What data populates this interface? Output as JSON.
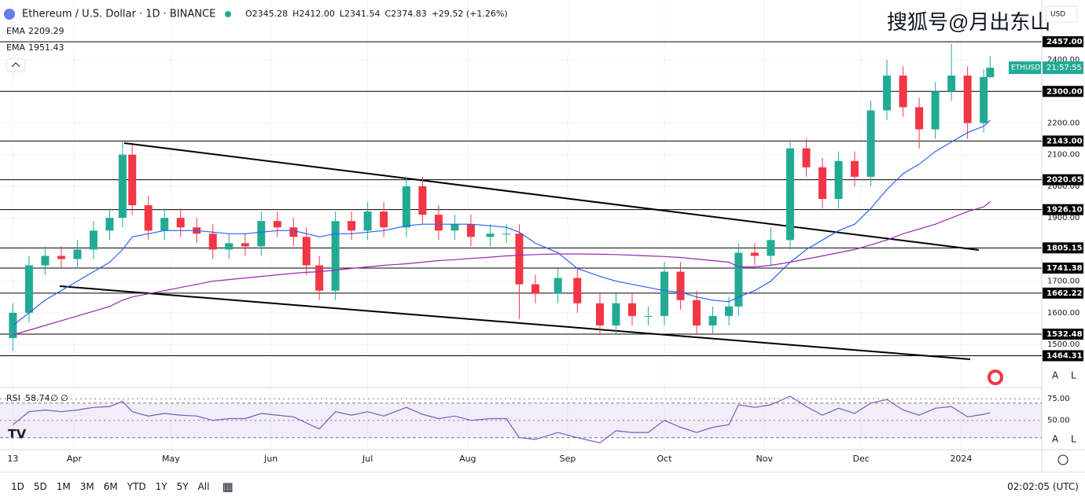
{
  "header": {
    "symbol": "Ethereum / U.S. Dollar · 1D · BINANCE",
    "ohlc": [
      "O2345.28",
      "H2412.00",
      "L2341.54",
      "C2374.83",
      "+29.52 (+1.26%)"
    ],
    "watermark": "搜狐号@月出东山",
    "currency": "USD",
    "time": "02:02:05 (UTC)",
    "ranges": [
      "1D",
      "5D",
      "1M",
      "3M",
      "6M",
      "YTD",
      "1Y",
      "5Y",
      "All"
    ],
    "scale_buttons": [
      "A",
      "L"
    ]
  },
  "price_tag": {
    "symbol": "ETHUSD",
    "countdown": "21:57:55"
  },
  "chart_data": {
    "type": "candlestick",
    "up_color": "#22ab94",
    "down_color": "#f23645",
    "xlim": [
      "2023-03-09",
      "2024-01-26"
    ],
    "ylim": [
      1366,
      2589
    ],
    "xticks": [
      {
        "value": "2023-03-13",
        "label": "13"
      },
      {
        "value": "2023-04-01",
        "label": "Apr"
      },
      {
        "value": "2023-05-01",
        "label": "May"
      },
      {
        "value": "2023-06-01",
        "label": "Jun"
      },
      {
        "value": "2023-07-01",
        "label": "Jul"
      },
      {
        "value": "2023-08-01",
        "label": "Aug"
      },
      {
        "value": "2023-09-01",
        "label": "Sep"
      },
      {
        "value": "2023-10-01",
        "label": "Oct"
      },
      {
        "value": "2023-11-01",
        "label": "Nov"
      },
      {
        "value": "2023-12-01",
        "label": "Dec"
      },
      {
        "value": "2024-01-01",
        "label": "2024"
      }
    ],
    "yticks": [
      {
        "value": 1500,
        "label": "1500.00"
      },
      {
        "value": 1600,
        "label": "1600.00"
      },
      {
        "value": 1700,
        "label": "1700.00"
      },
      {
        "value": 1800,
        "label": "1800.00"
      },
      {
        "value": 1900,
        "label": "1900.00"
      },
      {
        "value": 2000,
        "label": "2000.00"
      },
      {
        "value": 2100,
        "label": "2100.00"
      },
      {
        "value": 2200,
        "label": "2200.00"
      },
      {
        "value": 2300,
        "label": "2300.00"
      },
      {
        "value": 2400,
        "label": "2400.00"
      }
    ],
    "levels": [
      {
        "value": 2457,
        "label": "2457.00"
      },
      {
        "value": 2300,
        "label": "2300.00"
      },
      {
        "value": 2143,
        "label": "2143.00"
      },
      2020.65,
      {
        "value": 1926.1,
        "label": "1926.10"
      },
      1805.15,
      1741.38,
      1662.22,
      1532.48,
      1464.31
    ],
    "x": [
      "2023-03-13",
      "2023-03-18",
      "2023-03-23",
      "2023-03-28",
      "2023-04-02",
      "2023-04-07",
      "2023-04-12",
      "2023-04-16",
      "2023-04-19",
      "2023-04-24",
      "2023-04-29",
      "2023-05-04",
      "2023-05-09",
      "2023-05-14",
      "2023-05-19",
      "2023-05-24",
      "2023-05-29",
      "2023-06-03",
      "2023-06-08",
      "2023-06-12",
      "2023-06-16",
      "2023-06-21",
      "2023-06-26",
      "2023-07-01",
      "2023-07-06",
      "2023-07-13",
      "2023-07-18",
      "2023-07-23",
      "2023-07-28",
      "2023-08-02",
      "2023-08-08",
      "2023-08-13",
      "2023-08-17",
      "2023-08-22",
      "2023-08-29",
      "2023-09-04",
      "2023-09-11",
      "2023-09-16",
      "2023-09-21",
      "2023-09-26",
      "2023-10-01",
      "2023-10-06",
      "2023-10-11",
      "2023-10-16",
      "2023-10-21",
      "2023-10-24",
      "2023-10-29",
      "2023-11-03",
      "2023-11-09",
      "2023-11-14",
      "2023-11-19",
      "2023-11-24",
      "2023-11-29",
      "2023-12-04",
      "2023-12-09",
      "2023-12-14",
      "2023-12-19",
      "2023-12-24",
      "2023-12-29",
      "2024-01-03",
      "2024-01-08",
      "2024-01-10"
    ],
    "open": [
      1520,
      1600,
      1750,
      1780,
      1770,
      1800,
      1860,
      1900,
      2100,
      1940,
      1860,
      1900,
      1870,
      1850,
      1800,
      1820,
      1810,
      1890,
      1870,
      1840,
      1750,
      1670,
      1890,
      1860,
      1920,
      1870,
      2000,
      1910,
      1860,
      1880,
      1840,
      1850,
      1850,
      1690,
      1660,
      1710,
      1630,
      1560,
      1630,
      1590,
      1590,
      1730,
      1640,
      1560,
      1590,
      1620,
      1790,
      1780,
      1830,
      2120,
      2060,
      1960,
      2080,
      2030,
      2240,
      2350,
      2250,
      2180,
      2300,
      2350,
      2200,
      2345.28
    ],
    "high": [
      1630,
      1780,
      1810,
      1810,
      1830,
      1890,
      1930,
      2140,
      2130,
      1970,
      1930,
      1930,
      1900,
      1880,
      1850,
      1850,
      1920,
      1920,
      1900,
      1870,
      1780,
      1920,
      1920,
      1950,
      1950,
      2030,
      2030,
      1940,
      1910,
      1910,
      1880,
      1880,
      1880,
      1720,
      1740,
      1740,
      1660,
      1660,
      1660,
      1620,
      1760,
      1760,
      1670,
      1620,
      1650,
      1820,
      1820,
      1870,
      2140,
      2150,
      2090,
      2110,
      2110,
      2270,
      2400,
      2380,
      2280,
      2330,
      2450,
      2380,
      2370,
      2412
    ],
    "low": [
      1480,
      1570,
      1720,
      1740,
      1740,
      1770,
      1830,
      1870,
      1910,
      1830,
      1830,
      1840,
      1820,
      1770,
      1770,
      1780,
      1780,
      1840,
      1810,
      1720,
      1640,
      1640,
      1830,
      1830,
      1840,
      1840,
      1880,
      1830,
      1830,
      1810,
      1810,
      1820,
      1580,
      1630,
      1630,
      1600,
      1530,
      1530,
      1560,
      1560,
      1560,
      1610,
      1530,
      1530,
      1560,
      1590,
      1750,
      1750,
      1800,
      2030,
      1930,
      1930,
      2000,
      2000,
      2210,
      2220,
      2120,
      2150,
      2270,
      2150,
      2170,
      2341.54
    ],
    "close": [
      1600,
      1750,
      1780,
      1770,
      1800,
      1860,
      1900,
      2100,
      1940,
      1860,
      1900,
      1870,
      1850,
      1800,
      1820,
      1810,
      1890,
      1870,
      1840,
      1750,
      1670,
      1890,
      1860,
      1920,
      1870,
      2000,
      1910,
      1860,
      1880,
      1840,
      1850,
      1850,
      1690,
      1660,
      1710,
      1630,
      1560,
      1630,
      1590,
      1590,
      1730,
      1640,
      1560,
      1590,
      1620,
      1790,
      1780,
      1830,
      2120,
      2060,
      1960,
      2080,
      2030,
      2240,
      2350,
      2250,
      2180,
      2300,
      2350,
      2200,
      2345.28,
      2374.83
    ],
    "lines": [
      {
        "name": "EMA",
        "color": "#2962ff",
        "values": [
          1560,
          1600,
          1640,
          1670,
          1700,
          1730,
          1760,
          1800,
          1840,
          1850,
          1860,
          1860,
          1860,
          1855,
          1850,
          1850,
          1855,
          1860,
          1860,
          1850,
          1840,
          1850,
          1850,
          1855,
          1860,
          1875,
          1880,
          1880,
          1880,
          1880,
          1875,
          1870,
          1855,
          1820,
          1790,
          1740,
          1715,
          1700,
          1690,
          1680,
          1670,
          1665,
          1650,
          1640,
          1635,
          1650,
          1670,
          1700,
          1760,
          1800,
          1830,
          1860,
          1880,
          1930,
          1990,
          2040,
          2070,
          2110,
          2140,
          2170,
          2190,
          2209.29
        ]
      },
      {
        "name": "EMA",
        "color": "#9c27b0",
        "values": [
          1530,
          1545,
          1560,
          1575,
          1590,
          1605,
          1620,
          1640,
          1650,
          1660,
          1670,
          1680,
          1690,
          1700,
          1705,
          1710,
          1715,
          1720,
          1725,
          1728,
          1730,
          1735,
          1740,
          1745,
          1750,
          1755,
          1760,
          1765,
          1768,
          1772,
          1776,
          1780,
          1782,
          1784,
          1786,
          1786,
          1785,
          1784,
          1782,
          1780,
          1778,
          1775,
          1770,
          1765,
          1760,
          1745,
          1745,
          1750,
          1760,
          1770,
          1780,
          1790,
          1800,
          1815,
          1830,
          1850,
          1865,
          1880,
          1900,
          1920,
          1935,
          1951.43
        ]
      }
    ],
    "rsi": {
      "name": "RSI",
      "extra": "∅ ∅",
      "color": "#7e57c2",
      "ylim": [
        17,
        87
      ],
      "band": [
        30,
        70
      ],
      "yticks": [
        {
          "value": 75,
          "label": "75.00"
        },
        {
          "value": 50,
          "label": "50.00"
        }
      ],
      "values": [
        45,
        60,
        62,
        60,
        62,
        65,
        66,
        72,
        60,
        55,
        58,
        56,
        55,
        50,
        52,
        52,
        58,
        56,
        54,
        47,
        40,
        60,
        56,
        60,
        55,
        65,
        57,
        52,
        55,
        50,
        52,
        52,
        30,
        28,
        36,
        30,
        24,
        38,
        36,
        36,
        50,
        42,
        36,
        42,
        45,
        68,
        65,
        68,
        78,
        66,
        56,
        64,
        58,
        70,
        74,
        62,
        56,
        64,
        66,
        54,
        57,
        58.74
      ]
    }
  }
}
